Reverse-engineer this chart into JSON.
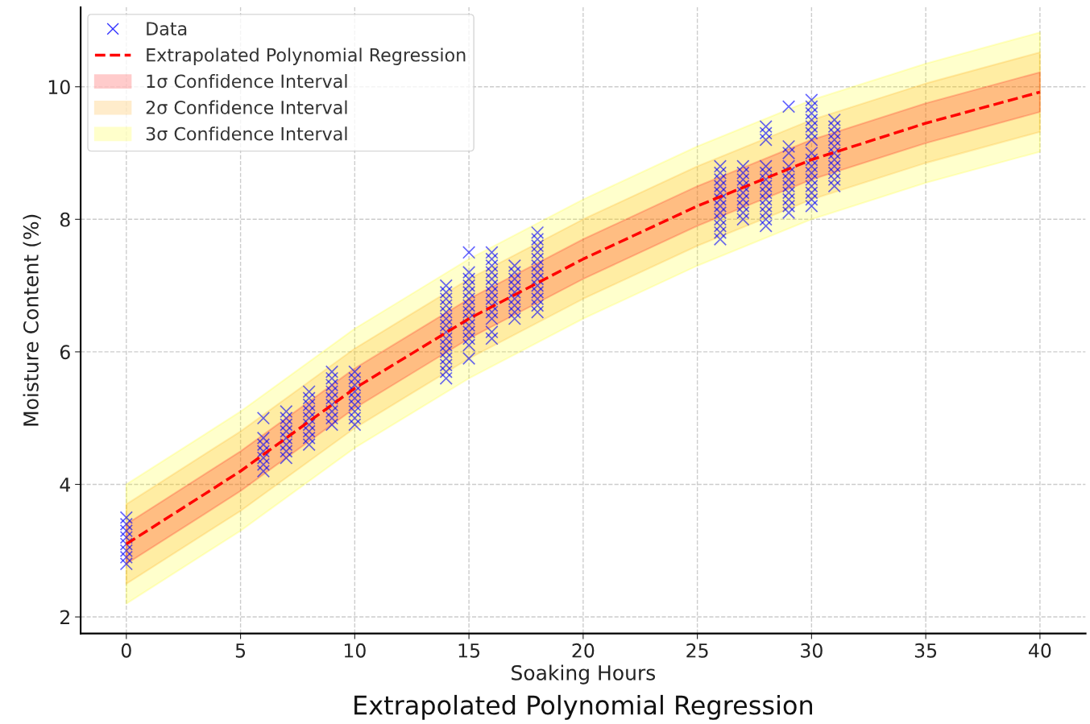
{
  "chart_data": {
    "type": "scatter",
    "title": "Extrapolated Polynomial Regression",
    "xlabel": "Soaking Hours",
    "ylabel": "Moisture Content (%)",
    "xlim": [
      -2,
      42
    ],
    "ylim": [
      1.75,
      11.2
    ],
    "xticks": [
      0,
      5,
      10,
      15,
      20,
      25,
      30,
      35,
      40
    ],
    "yticks": [
      2,
      4,
      6,
      8,
      10
    ],
    "grid": true,
    "legend": "top left",
    "marker": "cross",
    "series": [
      {
        "name": "Data",
        "color": "#0000ff",
        "x": [
          0,
          0,
          0,
          0,
          0,
          0,
          0,
          0,
          6,
          6,
          6,
          6,
          6,
          6,
          6,
          7,
          7,
          7,
          7,
          7,
          7,
          7,
          7,
          8,
          8,
          8,
          8,
          8,
          8,
          8,
          8,
          8,
          9,
          9,
          9,
          9,
          9,
          9,
          9,
          9,
          9,
          10,
          10,
          10,
          10,
          10,
          10,
          10,
          10,
          10,
          14,
          14,
          14,
          14,
          14,
          14,
          14,
          14,
          14,
          14,
          14,
          14,
          14,
          14,
          14,
          15,
          15,
          15,
          15,
          15,
          15,
          15,
          15,
          15,
          15,
          15,
          15,
          15,
          15,
          16,
          16,
          16,
          16,
          16,
          16,
          16,
          16,
          16,
          16,
          16,
          16,
          16,
          17,
          17,
          17,
          17,
          17,
          17,
          17,
          17,
          17,
          18,
          18,
          18,
          18,
          18,
          18,
          18,
          18,
          18,
          18,
          18,
          18,
          18,
          26,
          26,
          26,
          26,
          26,
          26,
          26,
          26,
          26,
          26,
          26,
          26,
          27,
          27,
          27,
          27,
          27,
          27,
          27,
          27,
          27,
          28,
          28,
          28,
          28,
          28,
          28,
          28,
          28,
          28,
          28,
          28,
          28,
          28,
          29,
          29,
          29,
          29,
          29,
          29,
          29,
          29,
          29,
          29,
          29,
          30,
          30,
          30,
          30,
          30,
          30,
          30,
          30,
          30,
          30,
          30,
          30,
          30,
          30,
          30,
          30,
          31,
          31,
          31,
          31,
          31,
          31,
          31,
          31,
          31,
          31,
          31
        ],
        "values": [
          2.8,
          2.9,
          3.0,
          3.1,
          3.2,
          3.3,
          3.4,
          3.5,
          4.2,
          4.3,
          4.4,
          4.5,
          4.6,
          4.7,
          5.0,
          4.4,
          4.5,
          4.6,
          4.7,
          4.8,
          4.9,
          5.0,
          5.1,
          4.6,
          4.7,
          4.8,
          4.9,
          5.0,
          5.1,
          5.2,
          5.3,
          5.4,
          4.9,
          5.0,
          5.1,
          5.2,
          5.3,
          5.4,
          5.5,
          5.6,
          5.7,
          4.9,
          5.0,
          5.1,
          5.2,
          5.3,
          5.4,
          5.5,
          5.6,
          5.7,
          5.6,
          5.7,
          5.8,
          5.9,
          6.0,
          6.1,
          6.2,
          6.3,
          6.4,
          6.5,
          6.6,
          6.7,
          6.8,
          6.9,
          7.0,
          5.9,
          6.1,
          6.2,
          6.3,
          6.4,
          6.5,
          6.6,
          6.7,
          6.8,
          6.9,
          7.0,
          7.1,
          7.2,
          7.5,
          6.2,
          6.3,
          6.5,
          6.6,
          6.7,
          6.8,
          6.9,
          7.0,
          7.1,
          7.2,
          7.3,
          7.4,
          7.5,
          6.5,
          6.6,
          6.7,
          6.8,
          6.9,
          7.0,
          7.1,
          7.2,
          7.3,
          6.6,
          6.7,
          6.8,
          6.9,
          7.0,
          7.1,
          7.2,
          7.3,
          7.4,
          7.5,
          7.6,
          7.7,
          7.8,
          7.7,
          7.8,
          7.9,
          8.0,
          8.1,
          8.2,
          8.3,
          8.4,
          8.5,
          8.6,
          8.7,
          8.8,
          8.0,
          8.1,
          8.2,
          8.3,
          8.4,
          8.5,
          8.6,
          8.7,
          8.8,
          7.9,
          8.0,
          8.1,
          8.2,
          8.3,
          8.4,
          8.5,
          8.6,
          8.7,
          8.8,
          9.2,
          9.3,
          9.4,
          8.1,
          8.2,
          8.3,
          8.4,
          8.5,
          8.6,
          8.7,
          8.8,
          9.0,
          9.1,
          9.7,
          8.2,
          8.3,
          8.4,
          8.5,
          8.6,
          8.7,
          8.8,
          8.9,
          9.0,
          9.2,
          9.3,
          9.4,
          9.5,
          9.6,
          9.7,
          9.8,
          8.5,
          8.6,
          8.7,
          8.8,
          8.9,
          9.0,
          9.1,
          9.2,
          9.3,
          9.4,
          9.5
        ]
      },
      {
        "name": "Extrapolated Polynomial Regression",
        "type": "line",
        "line_style": "dashed",
        "marker": "none",
        "color": "#ff0000",
        "x": [
          0,
          5,
          10,
          15,
          20,
          25,
          30,
          35,
          40
        ],
        "values": [
          3.1,
          4.2,
          5.45,
          6.5,
          7.4,
          8.2,
          8.9,
          9.45,
          9.92
        ]
      },
      {
        "name": "1σ Confidence Interval",
        "type": "line",
        "marker": "none",
        "color": "#ff0000",
        "x": [
          0,
          5,
          10,
          15,
          20,
          25,
          30,
          35,
          40
        ],
        "values": [
          null,
          null,
          null,
          null,
          null,
          null,
          null,
          null,
          null
        ],
        "lower": [
          2.8,
          3.9,
          5.15,
          6.2,
          7.1,
          7.9,
          8.6,
          9.15,
          9.62
        ],
        "upper": [
          3.4,
          4.5,
          5.75,
          6.8,
          7.7,
          8.5,
          9.2,
          9.75,
          10.22
        ]
      },
      {
        "name": "2σ Confidence Interval",
        "type": "line",
        "marker": "none",
        "color": "#ffa500",
        "x": [
          0,
          5,
          10,
          15,
          20,
          25,
          30,
          35,
          40
        ],
        "values": [
          null,
          null,
          null,
          null,
          null,
          null,
          null,
          null,
          null
        ],
        "lower": [
          2.5,
          3.6,
          4.85,
          5.9,
          6.8,
          7.6,
          8.3,
          8.85,
          9.32
        ],
        "upper": [
          3.7,
          4.8,
          6.05,
          7.1,
          8.0,
          8.8,
          9.5,
          10.05,
          10.52
        ]
      },
      {
        "name": "3σ Confidence Interval",
        "type": "line",
        "marker": "none",
        "color": "#ffff00",
        "x": [
          0,
          5,
          10,
          15,
          20,
          25,
          30,
          35,
          40
        ],
        "values": [
          null,
          null,
          null,
          null,
          null,
          null,
          null,
          null,
          null
        ],
        "lower": [
          2.2,
          3.3,
          4.55,
          5.6,
          6.5,
          7.3,
          8.0,
          8.55,
          9.02
        ],
        "upper": [
          4.0,
          5.1,
          6.35,
          7.4,
          8.3,
          9.1,
          9.8,
          10.35,
          10.82
        ]
      }
    ]
  }
}
